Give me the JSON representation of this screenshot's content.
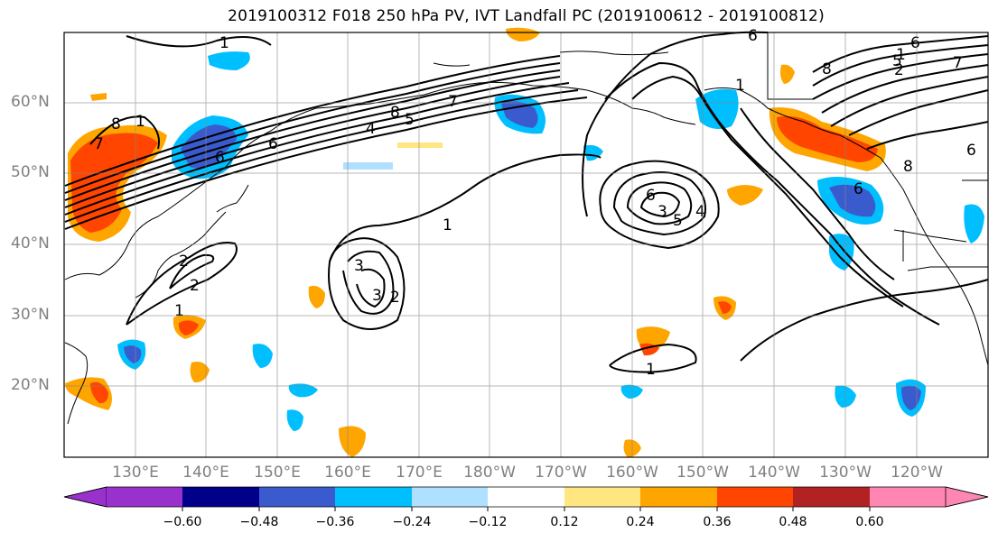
{
  "title": "2019100312 F018 250 hPa PV, IVT Landfall PC (2019100612 - 2019100812)",
  "map": {
    "lat_labels": [
      "60°N",
      "50°N",
      "40°N",
      "30°N",
      "20°N"
    ],
    "lon_labels": [
      "130°E",
      "140°E",
      "150°E",
      "160°E",
      "170°E",
      "180°W",
      "170°W",
      "160°W",
      "150°W",
      "140°W",
      "130°W",
      "120°W"
    ],
    "contour_labels": [
      "1",
      "1",
      "8",
      "7",
      "6",
      "5",
      "4",
      "7",
      "6",
      "8",
      "2",
      "3",
      "2",
      "1",
      "3",
      "2",
      "1",
      "6",
      "5",
      "4",
      "3",
      "1",
      "1",
      "6",
      "7",
      "6",
      "8",
      "5",
      "6",
      "8",
      "1",
      "2",
      "6"
    ],
    "land_color": "#ffffff",
    "contour_color": "#000000"
  },
  "colorbar": {
    "ticks": [
      "−0.60",
      "−0.48",
      "−0.36",
      "−0.24",
      "−0.12",
      "0.12",
      "0.24",
      "0.36",
      "0.48",
      "0.60"
    ],
    "colors": [
      "#9932cc",
      "#00008b",
      "#3a5bcd",
      "#00bfff",
      "#b0e0ff",
      "#ffffff",
      "#ffe680",
      "#ffa500",
      "#ff4500",
      "#b22222",
      "#ff86b3"
    ]
  }
}
